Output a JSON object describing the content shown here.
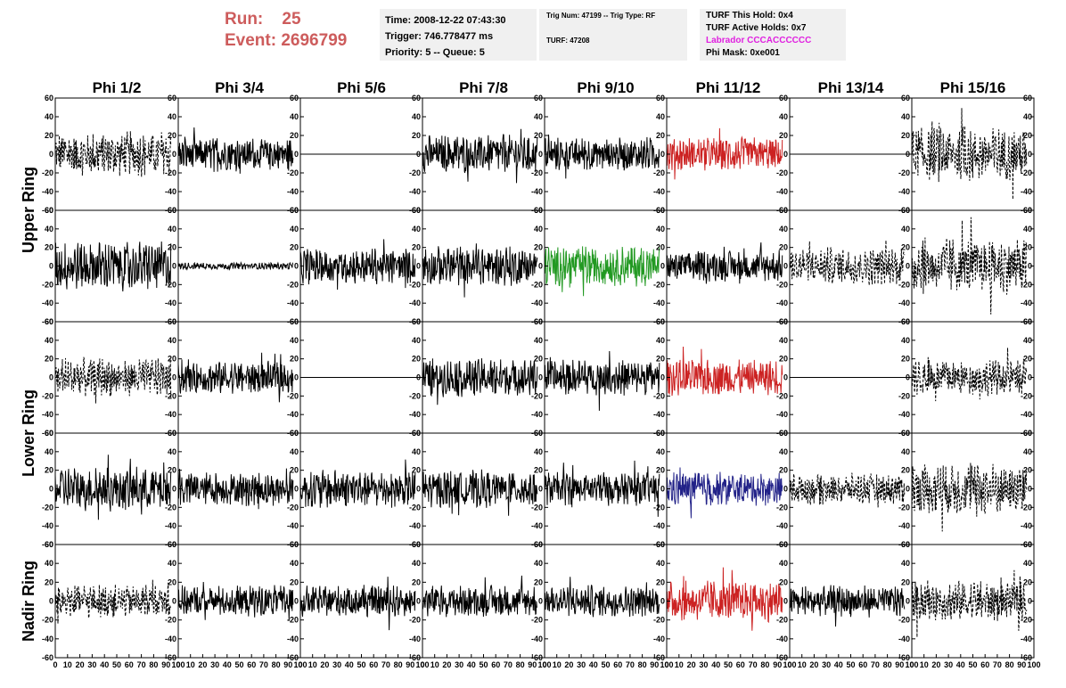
{
  "header": {
    "run_label": "Run:",
    "run_value": "25",
    "event_label": "Event:",
    "event_value": "2696799",
    "time": "Time: 2008-12-22 07:43:30",
    "trigger": "Trigger: 746.778477 ms",
    "priority": "Priority: 5 -- Queue: 5",
    "trig_num": "Trig Num: 47199 -- Trig Type: RF",
    "turf": "TURF: 47208",
    "turf_hold": "TURF This Hold: 0x4",
    "turf_active": "TURF Active Holds: 0x7",
    "labrador": "Labrador CCCACCCCCC",
    "phi_mask": "Phi Mask: 0xe001"
  },
  "colors": {
    "run_text": "#cd5c5c",
    "labrador_text": "#e020e0",
    "info_bg": "#f0f0f0",
    "red_trace": "#cc2222",
    "green_trace": "#229922",
    "blue_trace": "#222288"
  },
  "columns": [
    "Phi 1/2",
    "Phi 3/4",
    "Phi 5/6",
    "Phi 7/8",
    "Phi 9/10",
    "Phi 11/12",
    "Phi 13/14",
    "Phi 15/16"
  ],
  "ring_labels": [
    "Upper Ring",
    "Lower Ring",
    "Nadir Ring"
  ],
  "chart_data": {
    "type": "line",
    "description_axes": "5 rows x 8 columns of waveform traces",
    "xlim": [
      0,
      100
    ],
    "ylim": [
      -60,
      60
    ],
    "x_ticks": [
      "0",
      "10",
      "20",
      "30",
      "40",
      "50",
      "60",
      "70",
      "80",
      "90",
      "100"
    ],
    "y_ticks": [
      "60",
      "40",
      "20",
      "0",
      "-20",
      "-40",
      "-60"
    ],
    "panels": [
      {
        "row": 0,
        "col": 0,
        "style": "dashed",
        "color": "black",
        "amplitude": 20
      },
      {
        "row": 0,
        "col": 1,
        "style": "solid",
        "color": "black",
        "amplitude": 15
      },
      {
        "row": 0,
        "col": 2,
        "style": "flat",
        "color": "black",
        "amplitude": 0
      },
      {
        "row": 0,
        "col": 3,
        "style": "solid",
        "color": "black",
        "amplitude": 17
      },
      {
        "row": 0,
        "col": 4,
        "style": "solid",
        "color": "black",
        "amplitude": 15
      },
      {
        "row": 0,
        "col": 5,
        "style": "solid",
        "color": "red",
        "amplitude": 15
      },
      {
        "row": 0,
        "col": 6,
        "style": "flat",
        "color": "black",
        "amplitude": 0
      },
      {
        "row": 0,
        "col": 7,
        "style": "dashed",
        "color": "black",
        "amplitude": 24
      },
      {
        "row": 1,
        "col": 0,
        "style": "solid",
        "color": "black",
        "amplitude": 22
      },
      {
        "row": 1,
        "col": 1,
        "style": "solid",
        "color": "black",
        "amplitude": 3
      },
      {
        "row": 1,
        "col": 2,
        "style": "solid",
        "color": "black",
        "amplitude": 16
      },
      {
        "row": 1,
        "col": 3,
        "style": "solid",
        "color": "black",
        "amplitude": 18
      },
      {
        "row": 1,
        "col": 4,
        "style": "solid",
        "color": "green",
        "amplitude": 18
      },
      {
        "row": 1,
        "col": 5,
        "style": "solid",
        "color": "black",
        "amplitude": 14
      },
      {
        "row": 1,
        "col": 6,
        "style": "dashed",
        "color": "black",
        "amplitude": 17
      },
      {
        "row": 1,
        "col": 7,
        "style": "dashed",
        "color": "black",
        "amplitude": 25
      },
      {
        "row": 2,
        "col": 0,
        "style": "dashed",
        "color": "black",
        "amplitude": 18
      },
      {
        "row": 2,
        "col": 1,
        "style": "solid",
        "color": "black",
        "amplitude": 15
      },
      {
        "row": 2,
        "col": 2,
        "style": "flat",
        "color": "black",
        "amplitude": 0
      },
      {
        "row": 2,
        "col": 3,
        "style": "solid",
        "color": "black",
        "amplitude": 17
      },
      {
        "row": 2,
        "col": 4,
        "style": "solid",
        "color": "black",
        "amplitude": 16
      },
      {
        "row": 2,
        "col": 5,
        "style": "solid",
        "color": "red",
        "amplitude": 16
      },
      {
        "row": 2,
        "col": 6,
        "style": "flat",
        "color": "black",
        "amplitude": 0
      },
      {
        "row": 2,
        "col": 7,
        "style": "dashed",
        "color": "black",
        "amplitude": 16
      },
      {
        "row": 3,
        "col": 0,
        "style": "solid",
        "color": "black",
        "amplitude": 20
      },
      {
        "row": 3,
        "col": 1,
        "style": "solid",
        "color": "black",
        "amplitude": 15
      },
      {
        "row": 3,
        "col": 2,
        "style": "solid",
        "color": "black",
        "amplitude": 17
      },
      {
        "row": 3,
        "col": 3,
        "style": "solid",
        "color": "black",
        "amplitude": 17
      },
      {
        "row": 3,
        "col": 4,
        "style": "solid",
        "color": "black",
        "amplitude": 15
      },
      {
        "row": 3,
        "col": 5,
        "style": "solid",
        "color": "blue",
        "amplitude": 15
      },
      {
        "row": 3,
        "col": 6,
        "style": "dashed",
        "color": "black",
        "amplitude": 14
      },
      {
        "row": 3,
        "col": 7,
        "style": "dashed",
        "color": "black",
        "amplitude": 24
      },
      {
        "row": 4,
        "col": 0,
        "style": "dashed",
        "color": "black",
        "amplitude": 15
      },
      {
        "row": 4,
        "col": 1,
        "style": "solid",
        "color": "black",
        "amplitude": 14
      },
      {
        "row": 4,
        "col": 2,
        "style": "solid",
        "color": "black",
        "amplitude": 14
      },
      {
        "row": 4,
        "col": 3,
        "style": "solid",
        "color": "black",
        "amplitude": 14
      },
      {
        "row": 4,
        "col": 4,
        "style": "solid",
        "color": "black",
        "amplitude": 14
      },
      {
        "row": 4,
        "col": 5,
        "style": "solid",
        "color": "red",
        "amplitude": 18
      },
      {
        "row": 4,
        "col": 6,
        "style": "solid",
        "color": "black",
        "amplitude": 14
      },
      {
        "row": 4,
        "col": 7,
        "style": "dashed",
        "color": "black",
        "amplitude": 18
      }
    ]
  }
}
